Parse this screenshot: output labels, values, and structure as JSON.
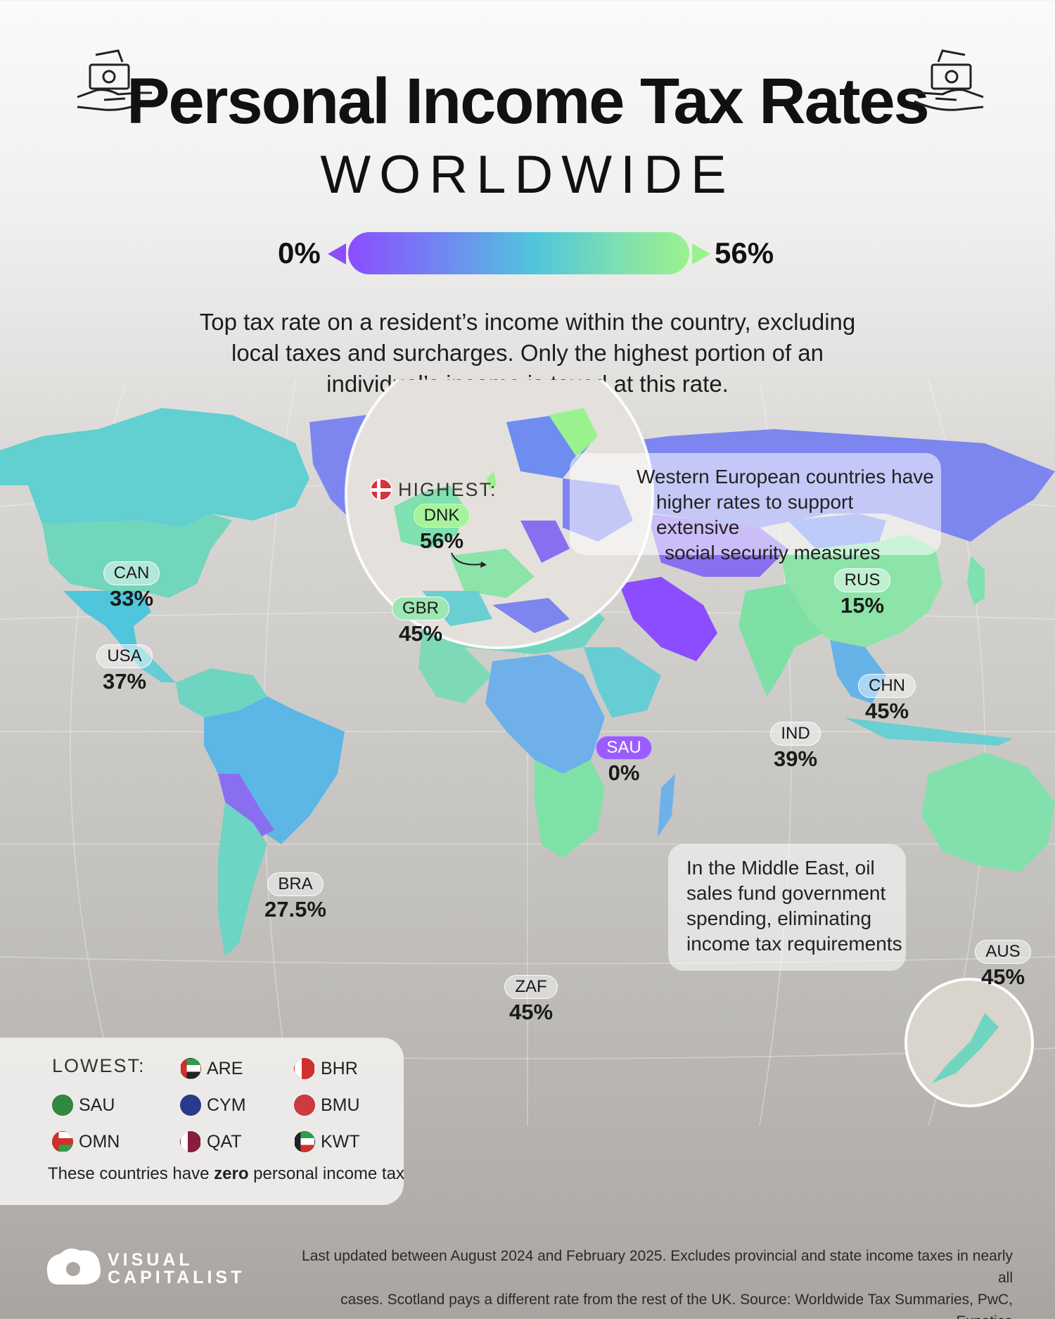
{
  "header": {
    "title": "Personal Income Tax Rates",
    "subtitle": "WORLDWIDE"
  },
  "legend": {
    "min": "0%",
    "max": "56%",
    "colors": [
      "#8b4dff",
      "#6f8cf0",
      "#4fc6dc",
      "#7fe0b0",
      "#9af28e"
    ]
  },
  "description": {
    "line1": "Top tax rate on a resident’s income within the country, excluding",
    "line2": "local taxes and surcharges. Only the highest portion of an",
    "line3": "individual’s income is taxed at this rate."
  },
  "highest": {
    "label": "HIGHEST:",
    "flag": "denmark-flag-icon"
  },
  "countries": [
    {
      "code": "DNK",
      "value": "56%"
    },
    {
      "code": "GBR",
      "value": "45%"
    },
    {
      "code": "CAN",
      "value": "33%"
    },
    {
      "code": "USA",
      "value": "37%"
    },
    {
      "code": "RUS",
      "value": "15%"
    },
    {
      "code": "CHN",
      "value": "45%"
    },
    {
      "code": "IND",
      "value": "39%"
    },
    {
      "code": "SAU",
      "value": "0%"
    },
    {
      "code": "BRA",
      "value": "27.5%"
    },
    {
      "code": "ZAF",
      "value": "45%"
    },
    {
      "code": "AUS",
      "value": "45%"
    }
  ],
  "callouts": {
    "europe": {
      "line1": "Western European countries have",
      "line2": "higher rates to support extensive",
      "line3": "social security measures"
    },
    "middle_east": {
      "line1": "In the Middle East, oil",
      "line2": "sales fund government",
      "line3": "spending, eliminating",
      "line4": "income tax requirements"
    }
  },
  "lowest": {
    "label": "LOWEST:",
    "items": [
      "ARE",
      "BHR",
      "SAU",
      "CYM",
      "BMU",
      "OMN",
      "QAT",
      "KWT"
    ],
    "note_prefix": "These countries have ",
    "note_bold": "zero",
    "note_suffix": " personal income tax"
  },
  "footer": {
    "logo_line1": "VISUAL",
    "logo_line2": "CAPITALIST",
    "note_line1": "Last updated between August 2024 and February 2025. Excludes provincial and state income taxes in nearly all",
    "note_line2": "cases. Scotland pays a different rate from the rest of the UK. Source: Worldwide Tax Summaries, PwC, Expatica"
  }
}
